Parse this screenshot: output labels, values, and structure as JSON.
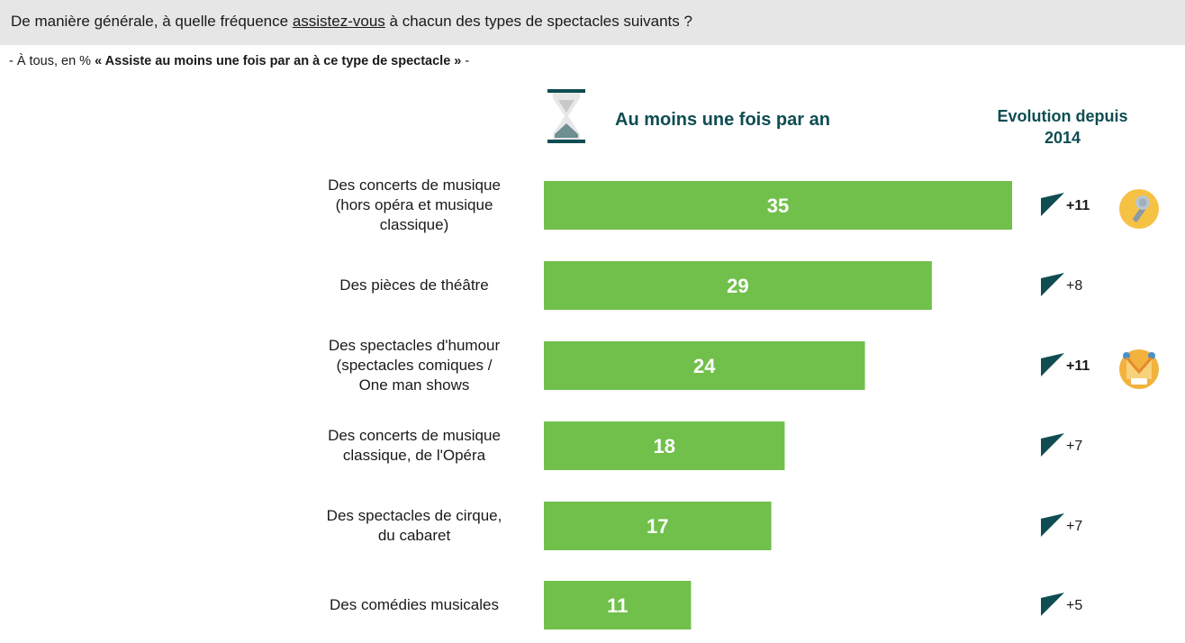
{
  "question": {
    "before": "De manière générale, à quelle fréquence ",
    "underlined": "assistez-vous",
    "after": " à chacun des types de spectacles suivants ?"
  },
  "subtitle": {
    "prefix": "- À tous, en % ",
    "bold": "« Assiste au moins une fois par an à ce type de spectacle »",
    "suffix": " -"
  },
  "column_headers": {
    "main": "Au moins une fois par an",
    "evolution_line1": "Evolution depuis",
    "evolution_line2": "2014"
  },
  "icons": {
    "header": "hourglass-icon",
    "badges": [
      "microphone-icon",
      "jester-icon"
    ]
  },
  "colors": {
    "bar": "#70c04b",
    "heading": "#0f4d52",
    "triangle": "#0f4d52"
  },
  "chart_data": {
    "type": "bar",
    "orientation": "horizontal",
    "categories": [
      [
        "Des concerts de musique",
        "(hors opéra et musique",
        "classique)"
      ],
      [
        "Des pièces de théâtre"
      ],
      [
        "Des spectacles d'humour",
        "(spectacles comiques /",
        "One man shows"
      ],
      [
        "Des concerts de musique",
        "classique, de l'Opéra"
      ],
      [
        "Des spectacles de cirque,",
        "du cabaret"
      ],
      [
        "Des comédies musicales"
      ]
    ],
    "values": [
      35,
      29,
      24,
      18,
      17,
      11
    ],
    "value_labels": [
      "35",
      "29",
      "24",
      "18",
      "17",
      "11"
    ],
    "evolution": [
      "+11",
      "+8",
      "+11",
      "+7",
      "+7",
      "+5"
    ],
    "evolution_bold": [
      true,
      false,
      true,
      false,
      false,
      false
    ],
    "badges": [
      "microphone-icon",
      null,
      "jester-icon",
      null,
      null,
      null
    ],
    "unit": "%"
  }
}
